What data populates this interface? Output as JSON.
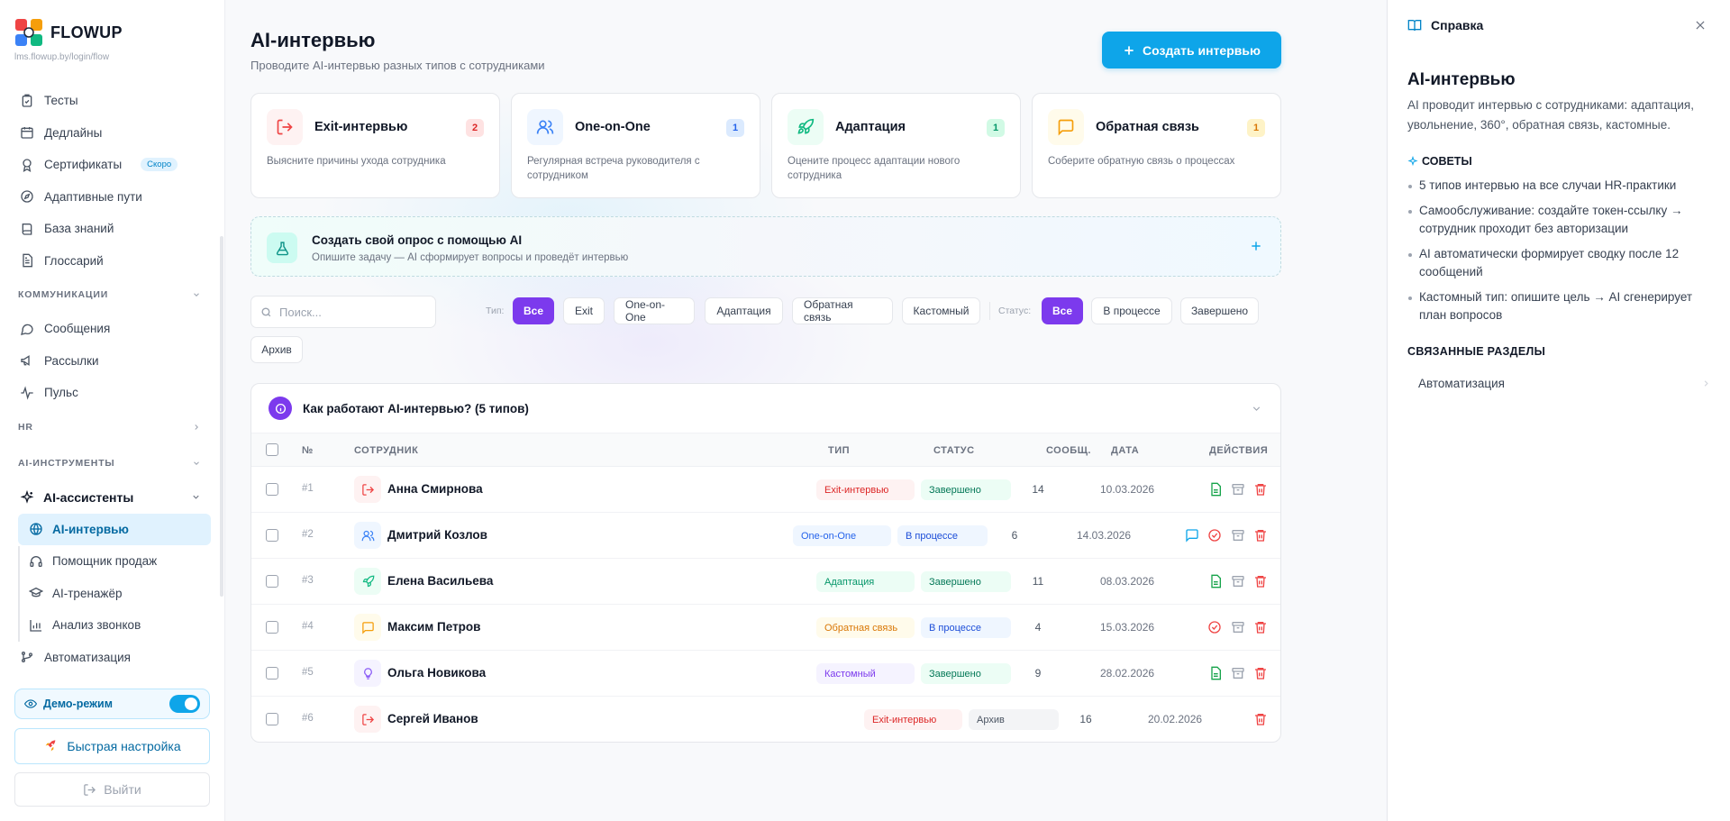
{
  "brand": {
    "name": "FLOWUP",
    "url": "lms.flowup.by/login/flow"
  },
  "sidebar": {
    "top_items": [
      {
        "label": "Тесты",
        "icon": "check-list-icon"
      },
      {
        "label": "Дедлайны",
        "icon": "calendar-icon"
      },
      {
        "label": "Сертификаты",
        "icon": "award-icon",
        "badge": "Скоро"
      },
      {
        "label": "Адаптивные пути",
        "icon": "compass-icon"
      },
      {
        "label": "База знаний",
        "icon": "book-icon"
      },
      {
        "label": "Глоссарий",
        "icon": "document-icon"
      }
    ],
    "section_comm": "КОММУНИКАЦИИ",
    "comm_items": [
      {
        "label": "Сообщения",
        "icon": "message-icon"
      },
      {
        "label": "Рассылки",
        "icon": "megaphone-icon"
      },
      {
        "label": "Пульс",
        "icon": "pulse-icon"
      }
    ],
    "section_hr": "HR",
    "section_ai": "AI-ИНСТРУМЕНТЫ",
    "ai_group": "AI-ассистенты",
    "ai_items": [
      {
        "label": "AI-интервью",
        "icon": "globe-icon",
        "active": true
      },
      {
        "label": "Помощник продаж",
        "icon": "headset-icon"
      },
      {
        "label": "AI-тренажёр",
        "icon": "graduation-cap-icon"
      },
      {
        "label": "Анализ звонков",
        "icon": "bar-chart-icon"
      }
    ],
    "automation": "Автоматизация",
    "demo_label": "Демо-режим",
    "quick_setup": "Быстрая настройка",
    "logout": "Выйти"
  },
  "main": {
    "title": "AI-интервью",
    "subtitle": "Проводите AI-интервью разных типов с сотрудниками",
    "create_button": "Создать интервью",
    "cards": [
      {
        "title": "Exit-интервью",
        "count": "2",
        "desc": "Выясните причины ухода сотрудника",
        "icon": "exit-icon",
        "color": "#ef4444",
        "bg": "#fef2f2"
      },
      {
        "title": "One-on-One",
        "count": "1",
        "desc": "Регулярная встреча руководителя с сотрудником",
        "icon": "users-icon",
        "color": "#3b82f6",
        "bg": "#eff6ff"
      },
      {
        "title": "Адаптация",
        "count": "1",
        "desc": "Оцените процесс адаптации нового сотрудника",
        "icon": "rocket-icon",
        "color": "#10b981",
        "bg": "#ecfdf5"
      },
      {
        "title": "Обратная связь",
        "count": "1",
        "desc": "Соберите обратную связь о процессах",
        "icon": "message-square-icon",
        "color": "#f59e0b",
        "bg": "#fffbeb"
      }
    ],
    "custom": {
      "title": "Создать свой опрос с помощью AI",
      "desc": "Опишите задачу — AI сформирует вопросы и проведёт интервью"
    },
    "search_placeholder": "Поиск...",
    "filters": {
      "type_label": "Тип:",
      "types": [
        "Все",
        "Exit",
        "One-on-One",
        "Адаптация",
        "Обратная связь",
        "Кастомный"
      ],
      "status_label": "Статус:",
      "statuses": [
        "Все",
        "В процессе",
        "Завершено",
        "Архив"
      ]
    },
    "how_it_works": "Как работают AI-интервью? (5 типов)",
    "columns": {
      "num": "№",
      "employee": "СОТРУДНИК",
      "type": "ТИП",
      "status": "СТАТУС",
      "messages": "СООБЩ.",
      "date": "ДАТА",
      "actions": "ДЕЙСТВИЯ"
    },
    "rows": [
      {
        "num": "#1",
        "name": "Анна Смирнова",
        "type": "Exit-интервью",
        "status": "Завершено",
        "messages": "14",
        "date": "10.03.2026"
      },
      {
        "num": "#2",
        "name": "Дмитрий Козлов",
        "type": "One-on-One",
        "status": "В процессе",
        "messages": "6",
        "date": "14.03.2026"
      },
      {
        "num": "#3",
        "name": "Елена Васильева",
        "type": "Адаптация",
        "status": "Завершено",
        "messages": "11",
        "date": "08.03.2026"
      },
      {
        "num": "#4",
        "name": "Максим Петров",
        "type": "Обратная связь",
        "status": "В процессе",
        "messages": "4",
        "date": "15.03.2026"
      },
      {
        "num": "#5",
        "name": "Ольга Новикова",
        "type": "Кастомный",
        "status": "Завершено",
        "messages": "9",
        "date": "28.02.2026"
      },
      {
        "num": "#6",
        "name": "Сергей Иванов",
        "type": "Exit-интервью",
        "status": "Архив",
        "messages": "16",
        "date": "20.02.2026"
      }
    ]
  },
  "help": {
    "header": "Справка",
    "title": "AI-интервью",
    "intro": "AI проводит интервью с сотрудниками: адаптация, увольнение, 360°, обратная связь, кастомные.",
    "tips_title": "СОВЕТЫ",
    "tips": [
      "5 типов интервью на все случаи HR-практики",
      "Самообслуживание: создайте токен-ссылку → сотрудник проходит без авторизации",
      "AI автоматически формирует сводку после 12 сообщений",
      "Кастомный тип: опишите цель → AI сгенерирует план вопросов"
    ],
    "related_title": "СВЯЗАННЫЕ РАЗДЕЛЫ",
    "related": [
      "Автоматизация"
    ]
  },
  "colors": {
    "accent": "#0ea5e9",
    "filter_selected": "#7c3aed"
  }
}
